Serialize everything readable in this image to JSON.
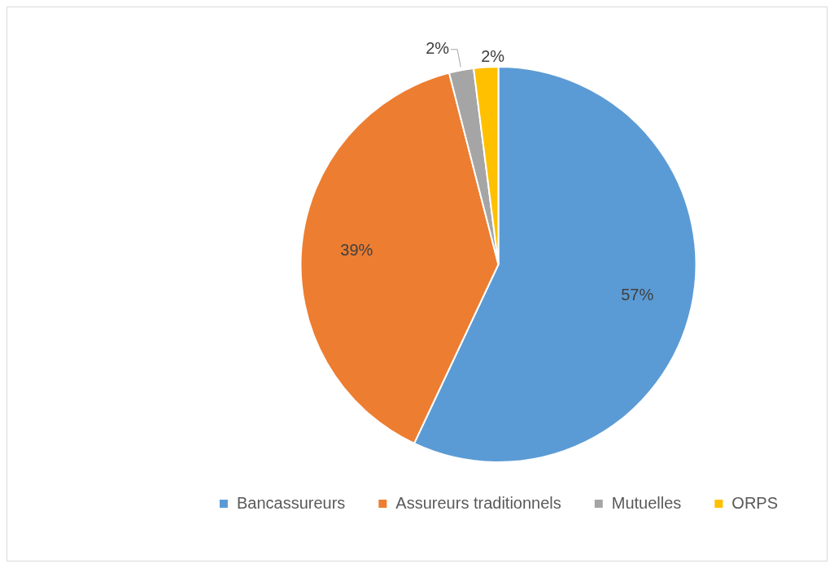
{
  "chart_data": {
    "type": "pie",
    "categories": [
      "Bancassureurs",
      "Assureurs traditionnels",
      "Mutuelles",
      "ORPS"
    ],
    "values": [
      57,
      39,
      2,
      2
    ],
    "value_labels": [
      "57%",
      "39%",
      "2%",
      "2%"
    ],
    "colors": [
      "#5b9bd5",
      "#ed7d31",
      "#a5a5a5",
      "#ffc000"
    ],
    "legend": "bottom"
  }
}
